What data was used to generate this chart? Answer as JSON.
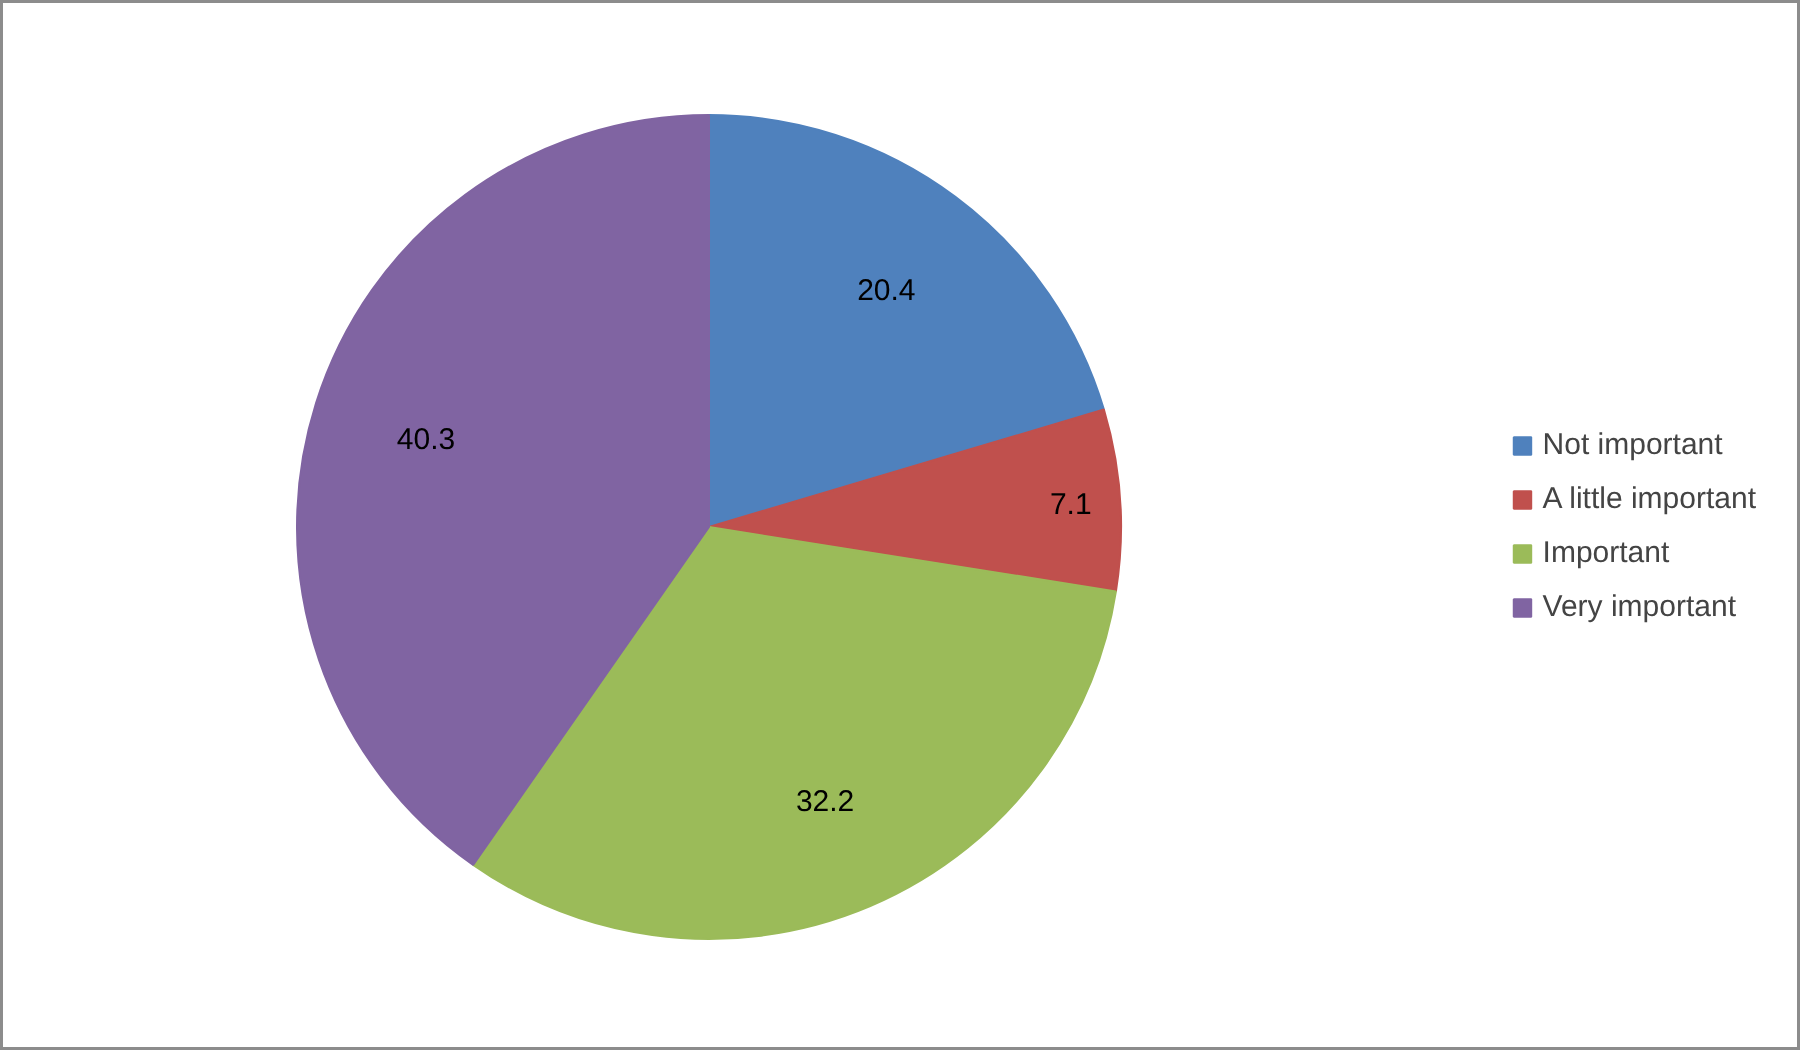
{
  "chart_data": {
    "type": "pie",
    "categories": [
      "Not important",
      "A little important",
      "Important",
      "Very important"
    ],
    "values": [
      20.4,
      7.1,
      32.2,
      40.3
    ],
    "colors": [
      "#4f81bd",
      "#c0504d",
      "#9bbb59",
      "#8064a2"
    ],
    "data_labels": true,
    "legend": "right"
  }
}
